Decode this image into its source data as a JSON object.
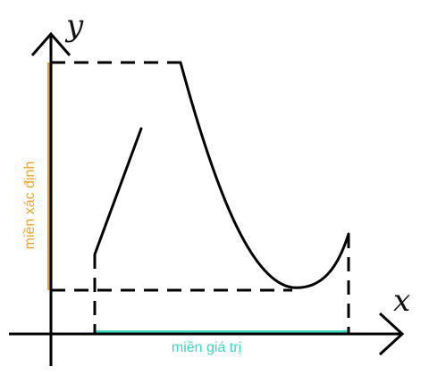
{
  "axes": {
    "x_label": "x",
    "y_label": "y"
  },
  "annotations": {
    "vertical_band_label": "miền xác định",
    "horizontal_band_label": "miền giá trị"
  },
  "colors": {
    "vertical_band": "#f0a32a",
    "horizontal_band": "#3fd6c0",
    "stroke": "#000000"
  }
}
